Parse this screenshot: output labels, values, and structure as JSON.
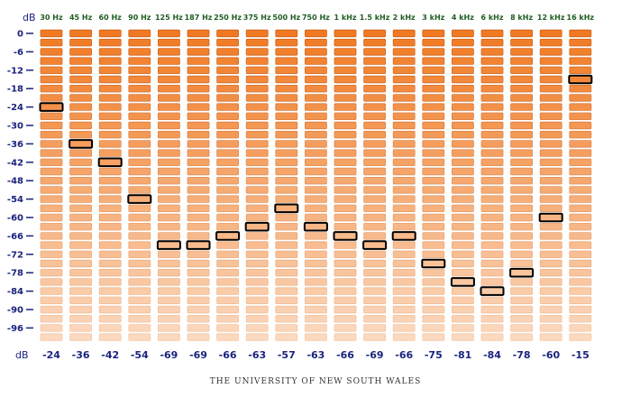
{
  "chart_data": {
    "type": "bar",
    "title": "",
    "y_unit_label": "dB",
    "bottom_row_label": "dB",
    "categories": [
      "30 Hz",
      "45 Hz",
      "60 Hz",
      "90 Hz",
      "125 Hz",
      "187 Hz",
      "250 Hz",
      "375 Hz",
      "500 Hz",
      "750 Hz",
      "1 kHz",
      "1.5 kHz",
      "2 kHz",
      "3 kHz",
      "4 kHz",
      "6 kHz",
      "8 kHz",
      "12 kHz",
      "16 kHz"
    ],
    "values": [
      -24,
      -36,
      -42,
      -54,
      -69,
      -69,
      -66,
      -63,
      -57,
      -63,
      -66,
      -69,
      -66,
      -75,
      -81,
      -84,
      -78,
      -60,
      -15
    ],
    "value_labels": [
      "-24",
      "-36",
      "-42",
      "-54",
      "-69",
      "-69",
      "-66",
      "-63",
      "-57",
      "-63",
      "-66",
      "-69",
      "-66",
      "-75",
      "-81",
      "-84",
      "-78",
      "-60",
      "-15"
    ],
    "yticks": [
      "0",
      "-6",
      "-12",
      "-18",
      "-24",
      "-30",
      "-36",
      "-42",
      "-48",
      "-54",
      "-60",
      "-66",
      "-72",
      "-78",
      "-84",
      "-90",
      "-96"
    ],
    "ylim": [
      -99,
      0
    ],
    "step_db": 3,
    "colors": {
      "cell_top": "#f07a23",
      "cell_bottom": "#fbd9bf",
      "cell_border": "#d0621a",
      "marker_border": "#000000",
      "category_text": "#1f5c22",
      "value_text": "#1a237e",
      "axis_text": "#1a237e"
    }
  },
  "footer": {
    "institution": "THE UNIVERSITY OF NEW SOUTH WALES"
  }
}
